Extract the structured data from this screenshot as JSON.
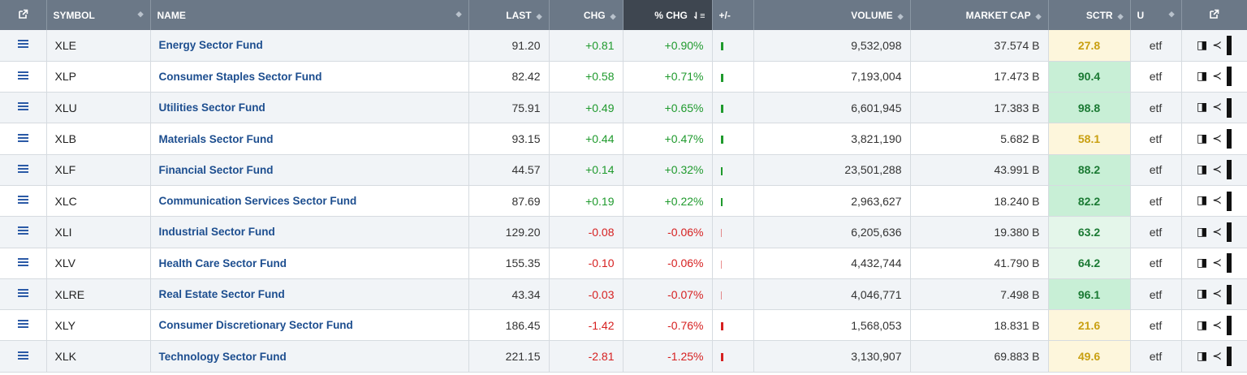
{
  "header": {
    "symbol": "SYMBOL",
    "name": "NAME",
    "last": "LAST",
    "chg": "CHG",
    "pct_chg": "% CHG",
    "plus_minus": "+/-",
    "volume": "VOLUME",
    "market_cap": "MARKET CAP",
    "sctr": "SCTR",
    "u": "U"
  },
  "rows": [
    {
      "symbol": "XLE",
      "name": "Energy Sector Fund",
      "last": "91.20",
      "chg": "+0.81",
      "pct": "+0.90%",
      "bar": 0.9,
      "volume": "9,532,098",
      "mcap": "37.574 B",
      "sctr": "27.8",
      "u": "etf"
    },
    {
      "symbol": "XLP",
      "name": "Consumer Staples Sector Fund",
      "last": "82.42",
      "chg": "+0.58",
      "pct": "+0.71%",
      "bar": 0.71,
      "volume": "7,193,004",
      "mcap": "17.473 B",
      "sctr": "90.4",
      "u": "etf"
    },
    {
      "symbol": "XLU",
      "name": "Utilities Sector Fund",
      "last": "75.91",
      "chg": "+0.49",
      "pct": "+0.65%",
      "bar": 0.65,
      "volume": "6,601,945",
      "mcap": "17.383 B",
      "sctr": "98.8",
      "u": "etf"
    },
    {
      "symbol": "XLB",
      "name": "Materials Sector Fund",
      "last": "93.15",
      "chg": "+0.44",
      "pct": "+0.47%",
      "bar": 0.47,
      "volume": "3,821,190",
      "mcap": "5.682 B",
      "sctr": "58.1",
      "u": "etf"
    },
    {
      "symbol": "XLF",
      "name": "Financial Sector Fund",
      "last": "44.57",
      "chg": "+0.14",
      "pct": "+0.32%",
      "bar": 0.32,
      "volume": "23,501,288",
      "mcap": "43.991 B",
      "sctr": "88.2",
      "u": "etf"
    },
    {
      "symbol": "XLC",
      "name": "Communication Services Sector Fund",
      "last": "87.69",
      "chg": "+0.19",
      "pct": "+0.22%",
      "bar": 0.22,
      "volume": "2,963,627",
      "mcap": "18.240 B",
      "sctr": "82.2",
      "u": "etf"
    },
    {
      "symbol": "XLI",
      "name": "Industrial Sector Fund",
      "last": "129.20",
      "chg": "-0.08",
      "pct": "-0.06%",
      "bar": -0.06,
      "volume": "6,205,636",
      "mcap": "19.380 B",
      "sctr": "63.2",
      "u": "etf"
    },
    {
      "symbol": "XLV",
      "name": "Health Care Sector Fund",
      "last": "155.35",
      "chg": "-0.10",
      "pct": "-0.06%",
      "bar": -0.06,
      "volume": "4,432,744",
      "mcap": "41.790 B",
      "sctr": "64.2",
      "u": "etf"
    },
    {
      "symbol": "XLRE",
      "name": "Real Estate Sector Fund",
      "last": "43.34",
      "chg": "-0.03",
      "pct": "-0.07%",
      "bar": -0.07,
      "volume": "4,046,771",
      "mcap": "7.498 B",
      "sctr": "96.1",
      "u": "etf"
    },
    {
      "symbol": "XLY",
      "name": "Consumer Discretionary Sector Fund",
      "last": "186.45",
      "chg": "-1.42",
      "pct": "-0.76%",
      "bar": -0.76,
      "volume": "1,568,053",
      "mcap": "18.831 B",
      "sctr": "21.6",
      "u": "etf"
    },
    {
      "symbol": "XLK",
      "name": "Technology Sector Fund",
      "last": "221.15",
      "chg": "-2.81",
      "pct": "-1.25%",
      "bar": -1.25,
      "volume": "3,130,907",
      "mcap": "69.883 B",
      "sctr": "49.6",
      "u": "etf"
    }
  ],
  "colors": {
    "positive": "#1f9a2d",
    "negative": "#d62020",
    "sctr_high_bg": "#c8efd6",
    "sctr_high_fg": "#1b7a34",
    "sctr_mid_bg": "#e4f6ea",
    "sctr_low_bg": "#fdf6dc",
    "sctr_low_fg": "#c9a012"
  },
  "icons": {
    "row_menu": "menu-icon",
    "external": "external-link-icon",
    "actions": [
      "candlestick-chart-icon",
      "compare-icon",
      "grid-icon"
    ]
  }
}
